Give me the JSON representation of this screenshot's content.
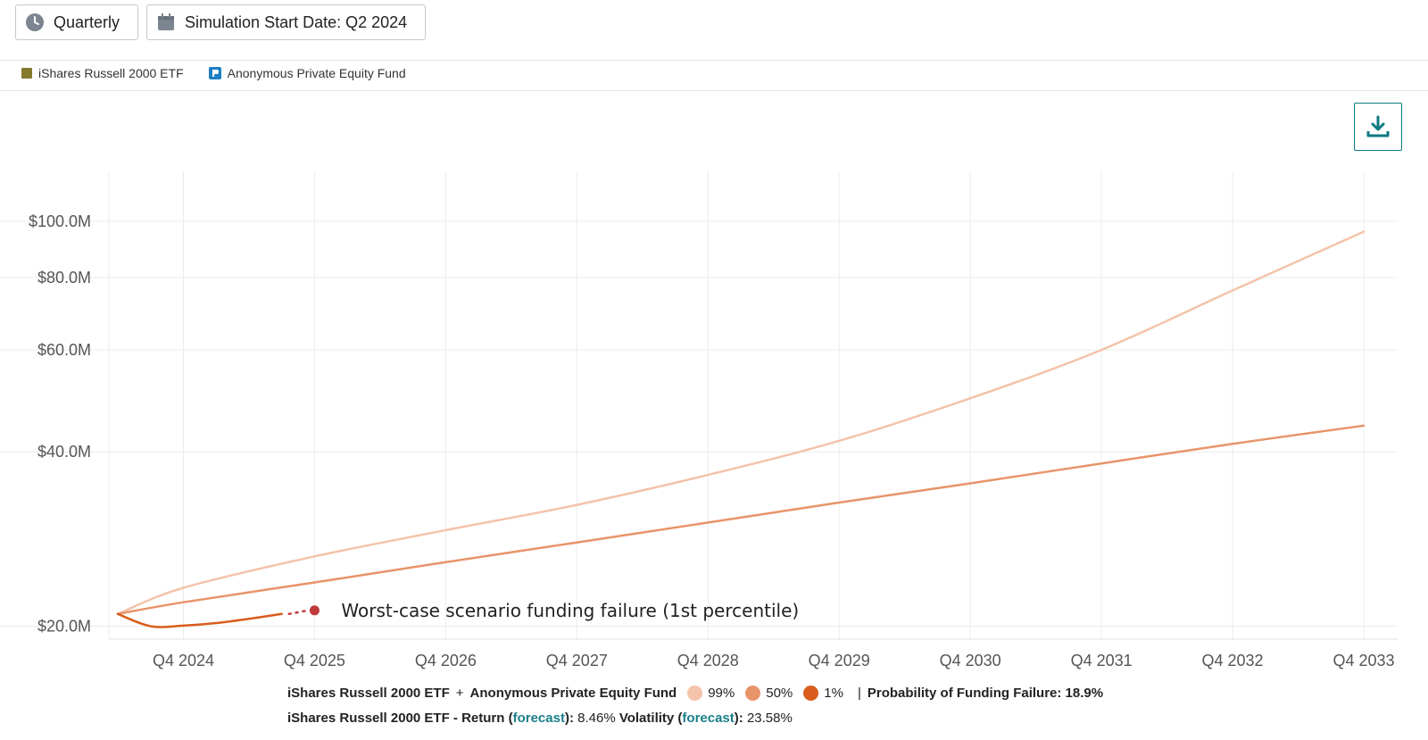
{
  "toolbar": {
    "frequency_label": "Quarterly",
    "start_date_label": "Simulation Start Date: Q2 2024"
  },
  "legend_top": [
    {
      "label": "iShares Russell 2000 ETF",
      "color": "#857a2e",
      "icon": "square-swatch"
    },
    {
      "label": "Anonymous Private Equity Fund",
      "color": "#1e7fc4",
      "icon": "fund-logo-icon"
    }
  ],
  "download_icon": "download-icon",
  "chart_data": {
    "type": "line",
    "title": "",
    "xlabel": "",
    "ylabel": "",
    "y_scale": "log",
    "ylim": [
      19000000,
      122000000
    ],
    "x_range": [
      "Q2 2024",
      "Q4 2033"
    ],
    "x_ticks": [
      "Q4 2024",
      "Q4 2025",
      "Q4 2026",
      "Q4 2027",
      "Q4 2028",
      "Q4 2029",
      "Q4 2030",
      "Q4 2031",
      "Q4 2032",
      "Q4 2033"
    ],
    "y_ticks": [
      {
        "value": 20000000,
        "label": "$20.0M"
      },
      {
        "value": 40000000,
        "label": "$40.0M"
      },
      {
        "value": 60000000,
        "label": "$60.0M"
      },
      {
        "value": 80000000,
        "label": "$80.0M"
      },
      {
        "value": 100000000,
        "label": "$100.0M"
      }
    ],
    "grid": true,
    "series": [
      {
        "name": "99%",
        "color": "#f4c3a9",
        "points": [
          [
            "Q2 2024",
            21000000
          ],
          [
            "Q4 2024",
            23300000
          ],
          [
            "Q4 2025",
            26400000
          ],
          [
            "Q4 2026",
            29300000
          ],
          [
            "Q4 2027",
            32400000
          ],
          [
            "Q4 2028",
            36500000
          ],
          [
            "Q4 2029",
            41800000
          ],
          [
            "Q4 2030",
            49500000
          ],
          [
            "Q4 2031",
            60000000
          ],
          [
            "Q4 2032",
            76000000
          ],
          [
            "Q4 2033",
            96000000
          ]
        ]
      },
      {
        "name": "50%",
        "color": "#e8946a",
        "points": [
          [
            "Q2 2024",
            21000000
          ],
          [
            "Q4 2024",
            22000000
          ],
          [
            "Q4 2025",
            23800000
          ],
          [
            "Q4 2026",
            25800000
          ],
          [
            "Q4 2027",
            27900000
          ],
          [
            "Q4 2028",
            30200000
          ],
          [
            "Q4 2029",
            32700000
          ],
          [
            "Q4 2030",
            35300000
          ],
          [
            "Q4 2031",
            38200000
          ],
          [
            "Q4 2032",
            41300000
          ],
          [
            "Q4 2033",
            44400000
          ]
        ]
      },
      {
        "name": "1%",
        "color": "#d95d1c",
        "points": [
          [
            "Q2 2024",
            21000000
          ],
          [
            "Q3 2024",
            20000000
          ],
          [
            "Q4 2024",
            20050000
          ],
          [
            "Q1 2025",
            20250000
          ],
          [
            "Q2 2025",
            20600000
          ],
          [
            "Q3 2025",
            21000000
          ]
        ]
      }
    ],
    "annotation": {
      "text": "Worst-case scenario funding failure (1st percentile)",
      "at": [
        "Q4 2025",
        21300000
      ],
      "marker_color": "#c0393b"
    },
    "legend_placement": "bottom"
  },
  "bottom_legend": {
    "portfolio": "iShares Russell 2000 ETF",
    "plus": "+",
    "fund": "Anonymous Private Equity Fund",
    "pct_items": [
      {
        "label": "99%",
        "color": "#f4c3a9"
      },
      {
        "label": "50%",
        "color": "#e8946a"
      },
      {
        "label": "1%",
        "color": "#d95d1c"
      }
    ],
    "divider": "|",
    "probability_label": "Probability of Funding Failure: 18.9%"
  },
  "stats": {
    "prefix": "iShares Russell 2000 ETF - Return (",
    "forecast_link": "forecast",
    "return_suffix": "): ",
    "return_value": "8.46%",
    "volatility_prefix": " Volatility (",
    "volatility_suffix": "): ",
    "volatility_value": "23.58%"
  }
}
